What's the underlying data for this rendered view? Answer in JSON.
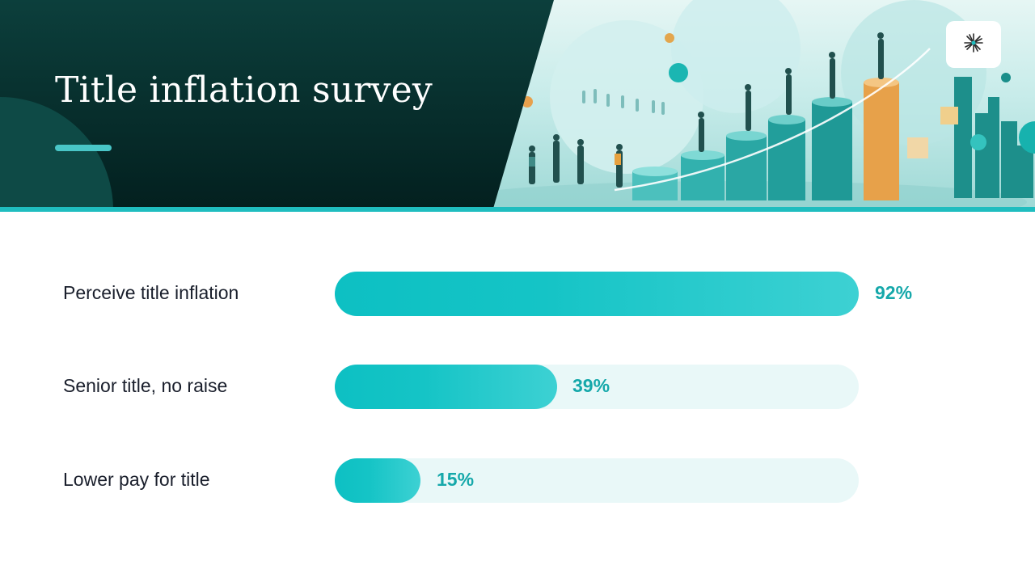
{
  "slide": {
    "title": "Title inflation survey"
  },
  "colors": {
    "accent": "#1fbdbf",
    "header_dark": "#0c3f3c",
    "bar_fill": "#0dc0c3",
    "bar_track": "#e9f8f8",
    "value_text": "#15a8aa",
    "label_text": "#1a1f2c"
  },
  "logo": {
    "icon": "asterisk-logo-icon"
  },
  "stats": [
    {
      "label": "Perceive title inflation",
      "value_text": "92%",
      "fraction": 1.0
    },
    {
      "label": "Senior title, no raise",
      "value_text": "39%",
      "fraction": 0.424
    },
    {
      "label": "Lower pay for title",
      "value_text": "15%",
      "fraction": 0.163
    }
  ]
}
